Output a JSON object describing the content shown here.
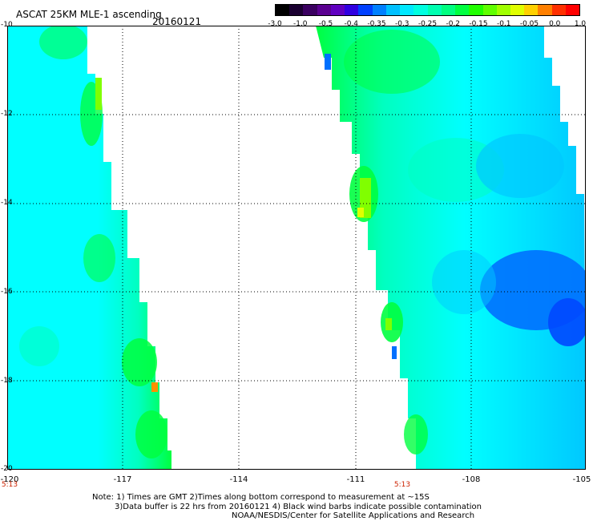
{
  "header": {
    "title": "ASCAT 25KM MLE-1 ascending",
    "date": "20160121"
  },
  "colorbar": {
    "labels": [
      "-3.0",
      "-1.0",
      "-0.5",
      "-0.4",
      "-0.35",
      "-0.3",
      "-0.25",
      "-0.2",
      "-0.15",
      "-0.1",
      "-0.05",
      "0.0",
      "1.0"
    ],
    "colors": [
      "#000000",
      "#1a0030",
      "#3a0060",
      "#5a0090",
      "#6000c0",
      "#3000e0",
      "#0040ff",
      "#0080ff",
      "#00c0ff",
      "#00e8ff",
      "#00ffe0",
      "#00ffb0",
      "#00ff80",
      "#00ff40",
      "#20ff00",
      "#60ff00",
      "#a0ff00",
      "#e0ff00",
      "#ffd000",
      "#ff8000",
      "#ff3000",
      "#ff0000"
    ]
  },
  "axes": {
    "x_ticks": [
      "-120",
      "-117",
      "-114",
      "-111",
      "-108",
      "-105"
    ],
    "y_ticks": [
      "-10",
      "-12",
      "-14",
      "-16",
      "-18",
      "-20"
    ],
    "time_labels": [
      "5:13",
      "5:13"
    ]
  },
  "palette": {
    "cyan": "#00ffff",
    "cyan_green": "#00ffc0",
    "green": "#00ff40",
    "lime": "#80ff00",
    "yellow": "#e0ff00",
    "orange": "#ff9000",
    "sky": "#00c8ff",
    "blue": "#0070ff",
    "deep_blue": "#0048ff"
  },
  "footer": {
    "note_line1": "Note: 1) Times are GMT 2)Times along bottom correspond to measurement at ~15S",
    "note_line2": "3)Data buffer is 22 hrs from 20160121 4) Black wind barbs indicate possible contamination",
    "credit": "NOAA/NESDIS/Center for Satellite Applications and Research"
  }
}
